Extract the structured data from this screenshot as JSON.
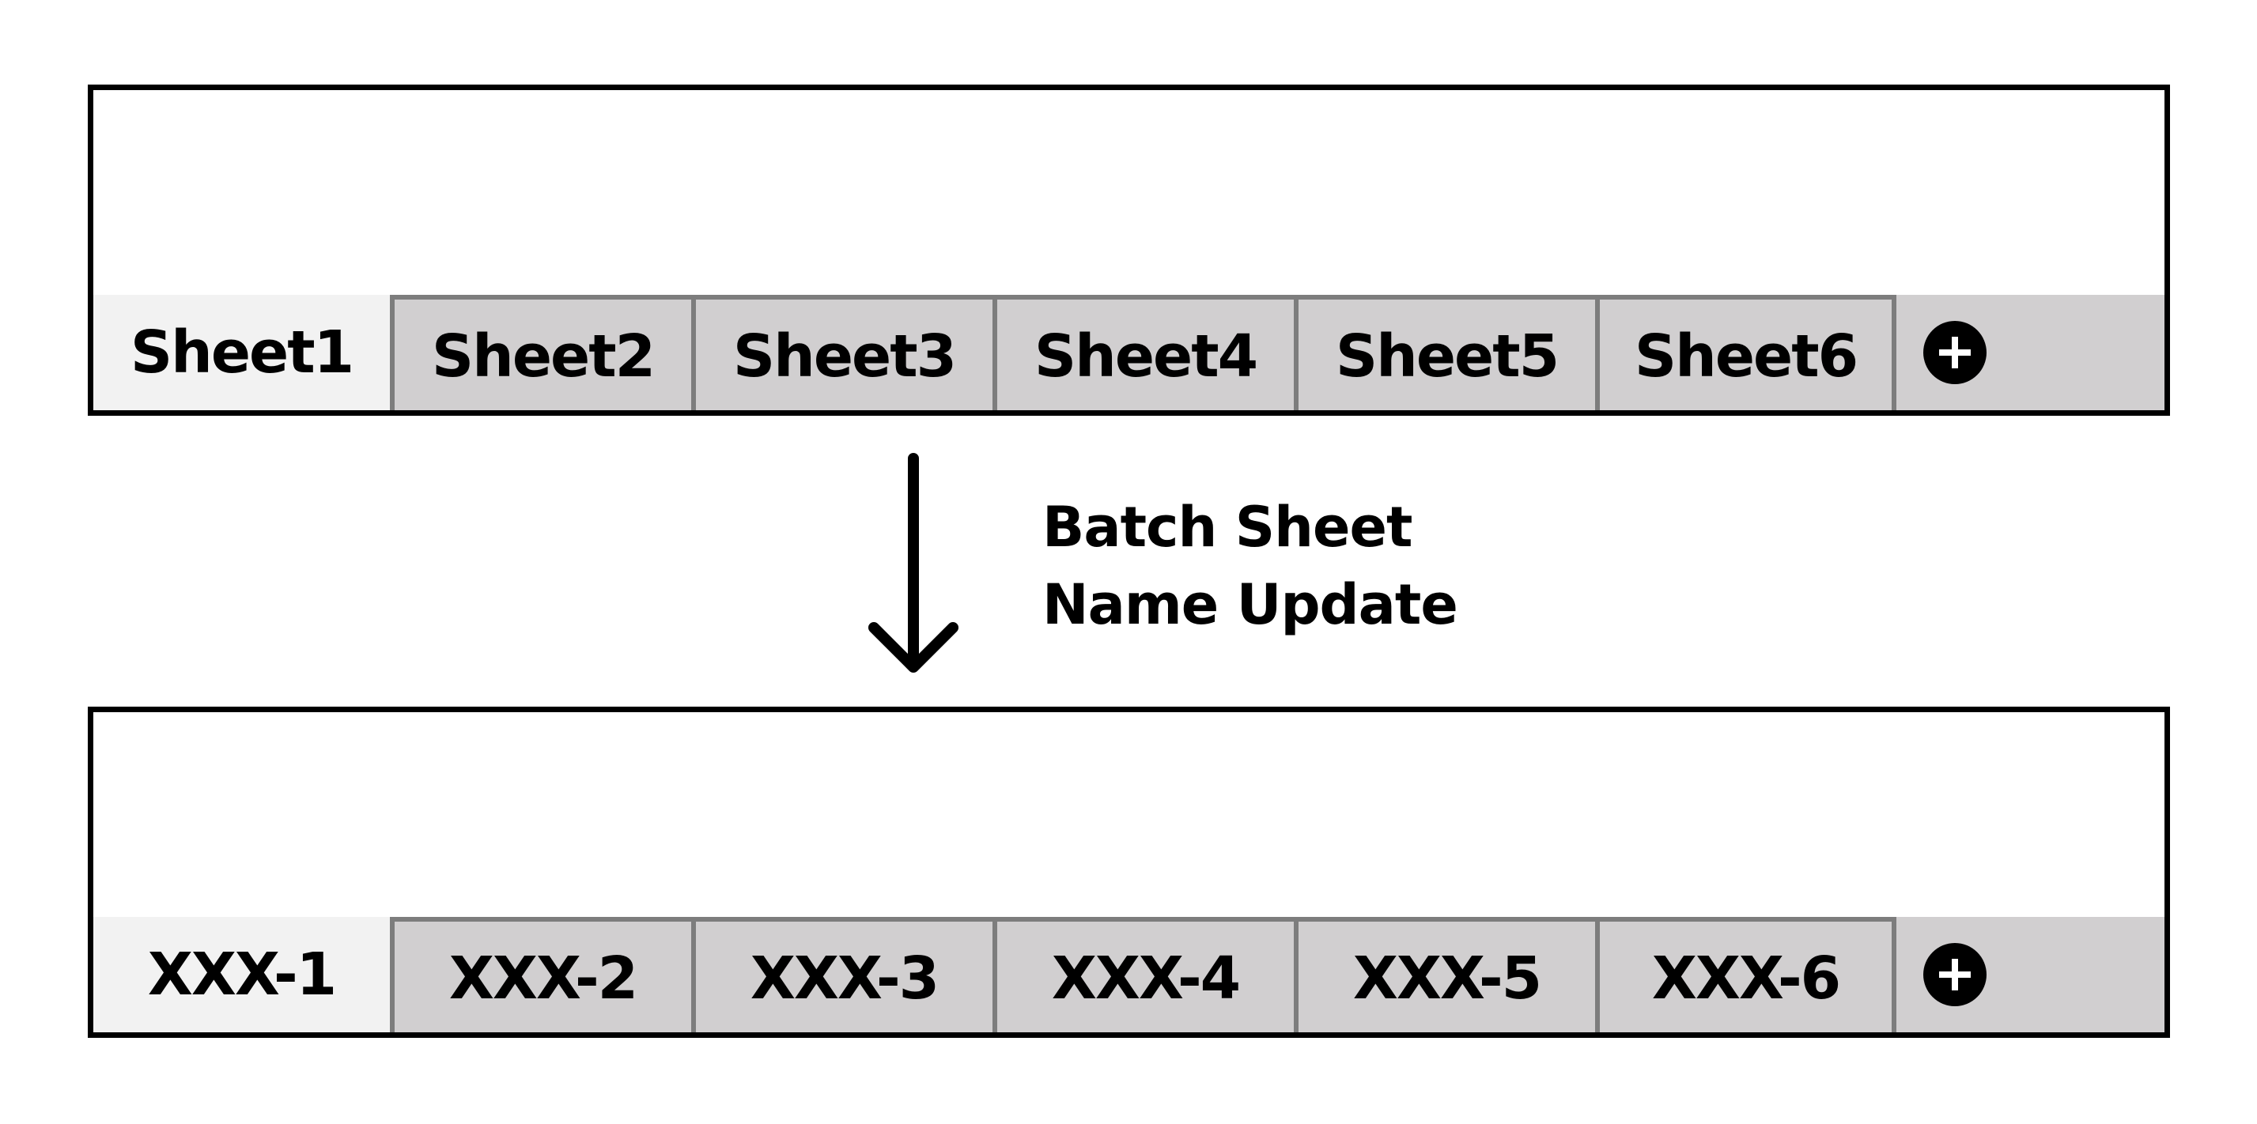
{
  "before": {
    "tabs": [
      {
        "label": "Sheet1",
        "active": true
      },
      {
        "label": "Sheet2",
        "active": false
      },
      {
        "label": "Sheet3",
        "active": false
      },
      {
        "label": "Sheet4",
        "active": false
      },
      {
        "label": "Sheet5",
        "active": false
      },
      {
        "label": "Sheet6",
        "active": false
      }
    ],
    "add_icon": "plus-circle-icon"
  },
  "transition": {
    "caption_line1": "Batch Sheet",
    "caption_line2": "Name Update",
    "arrow_icon": "arrow-down-icon"
  },
  "after": {
    "tabs": [
      {
        "label": "XXX-1",
        "active": true
      },
      {
        "label": "XXX-2",
        "active": false
      },
      {
        "label": "XXX-3",
        "active": false
      },
      {
        "label": "XXX-4",
        "active": false
      },
      {
        "label": "XXX-5",
        "active": false
      },
      {
        "label": "XXX-6",
        "active": false
      }
    ],
    "add_icon": "plus-circle-icon"
  },
  "colors": {
    "active_tab": "#f2f2f2",
    "inactive_tab": "#d1cfd0",
    "tab_border": "#7d7d7d",
    "frame": "#000000"
  }
}
